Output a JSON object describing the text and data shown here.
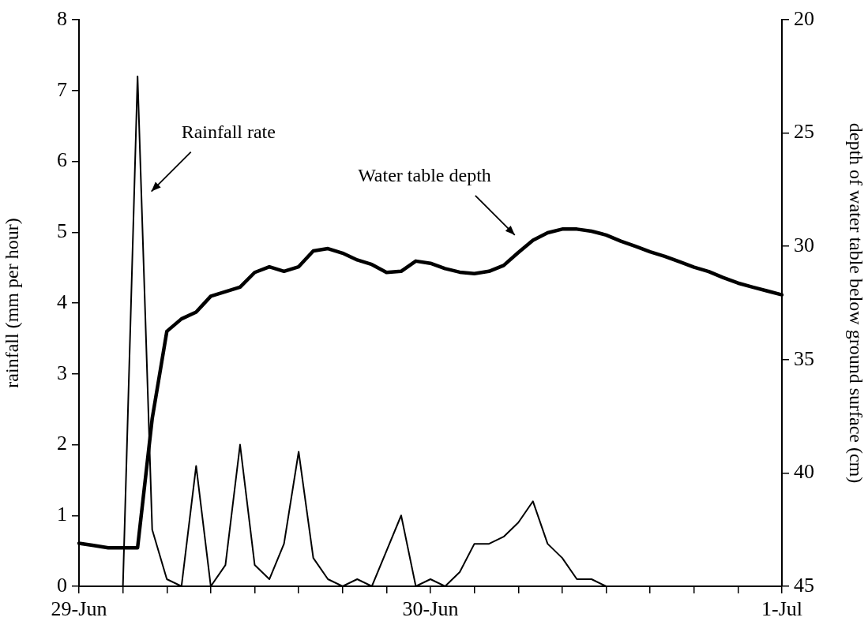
{
  "chart_data": {
    "type": "line",
    "xlabel": null,
    "ylabel": "rainfall (mm per hour)",
    "y2label": "depth of water table below ground surface (cm)",
    "categories": [
      "29-Jun",
      null,
      null,
      null,
      null,
      null,
      null,
      null,
      null,
      null,
      null,
      null,
      null,
      null,
      null,
      null,
      null,
      null,
      null,
      null,
      null,
      null,
      null,
      null,
      "30-Jun",
      null,
      null,
      null,
      null,
      null,
      null,
      null,
      null,
      null,
      null,
      null,
      null,
      null,
      null,
      null,
      null,
      null,
      null,
      null,
      null,
      null,
      null,
      null,
      "1-Jul"
    ],
    "series": [
      {
        "name": null,
        "color": "#000000",
        "values": [
          0,
          0,
          0,
          0,
          7.2,
          0.8,
          0.1,
          0,
          1.7,
          0,
          0.3,
          2.0,
          0.3,
          0.1,
          0.6,
          1.9,
          0.4,
          0.1,
          0,
          0.1,
          0,
          0.5,
          1.0,
          0,
          0.1,
          0,
          0.2,
          0.6,
          0.6,
          0.7,
          0.9,
          1.2,
          0.6,
          0.4,
          0.1,
          0.1,
          0,
          0,
          0,
          0,
          0,
          0,
          0,
          0,
          0,
          0,
          0,
          0,
          0
        ]
      },
      {
        "name": null,
        "color": "#000000",
        "axis": "y2",
        "values": [
          43.1,
          43.2,
          43.3,
          43.3,
          43.3,
          37.6,
          33.75,
          33.2,
          32.9,
          32.2,
          32.0,
          31.8,
          31.15,
          30.9,
          31.1,
          30.9,
          30.2,
          30.1,
          30.3,
          30.6,
          30.8,
          31.15,
          31.1,
          30.65,
          30.75,
          30.98,
          31.14,
          31.2,
          31.1,
          30.84,
          30.27,
          29.73,
          29.4,
          29.24,
          29.24,
          29.33,
          29.5,
          29.77,
          30.0,
          30.24,
          30.44,
          30.68,
          30.92,
          31.11,
          31.38,
          31.62,
          31.8,
          31.97,
          32.14
        ]
      }
    ],
    "ylim": [
      0,
      8
    ],
    "yticks": [
      0,
      1,
      2,
      3,
      4,
      5,
      6,
      7,
      8
    ],
    "y2lim": [
      45,
      20
    ],
    "y2ticks": [
      45,
      40,
      35,
      30,
      25,
      20
    ],
    "annotations": [
      "Rainfall rate",
      "Water table depth"
    ],
    "grid": false,
    "legend": false,
    "marker": "none",
    "line_style": "solid"
  }
}
